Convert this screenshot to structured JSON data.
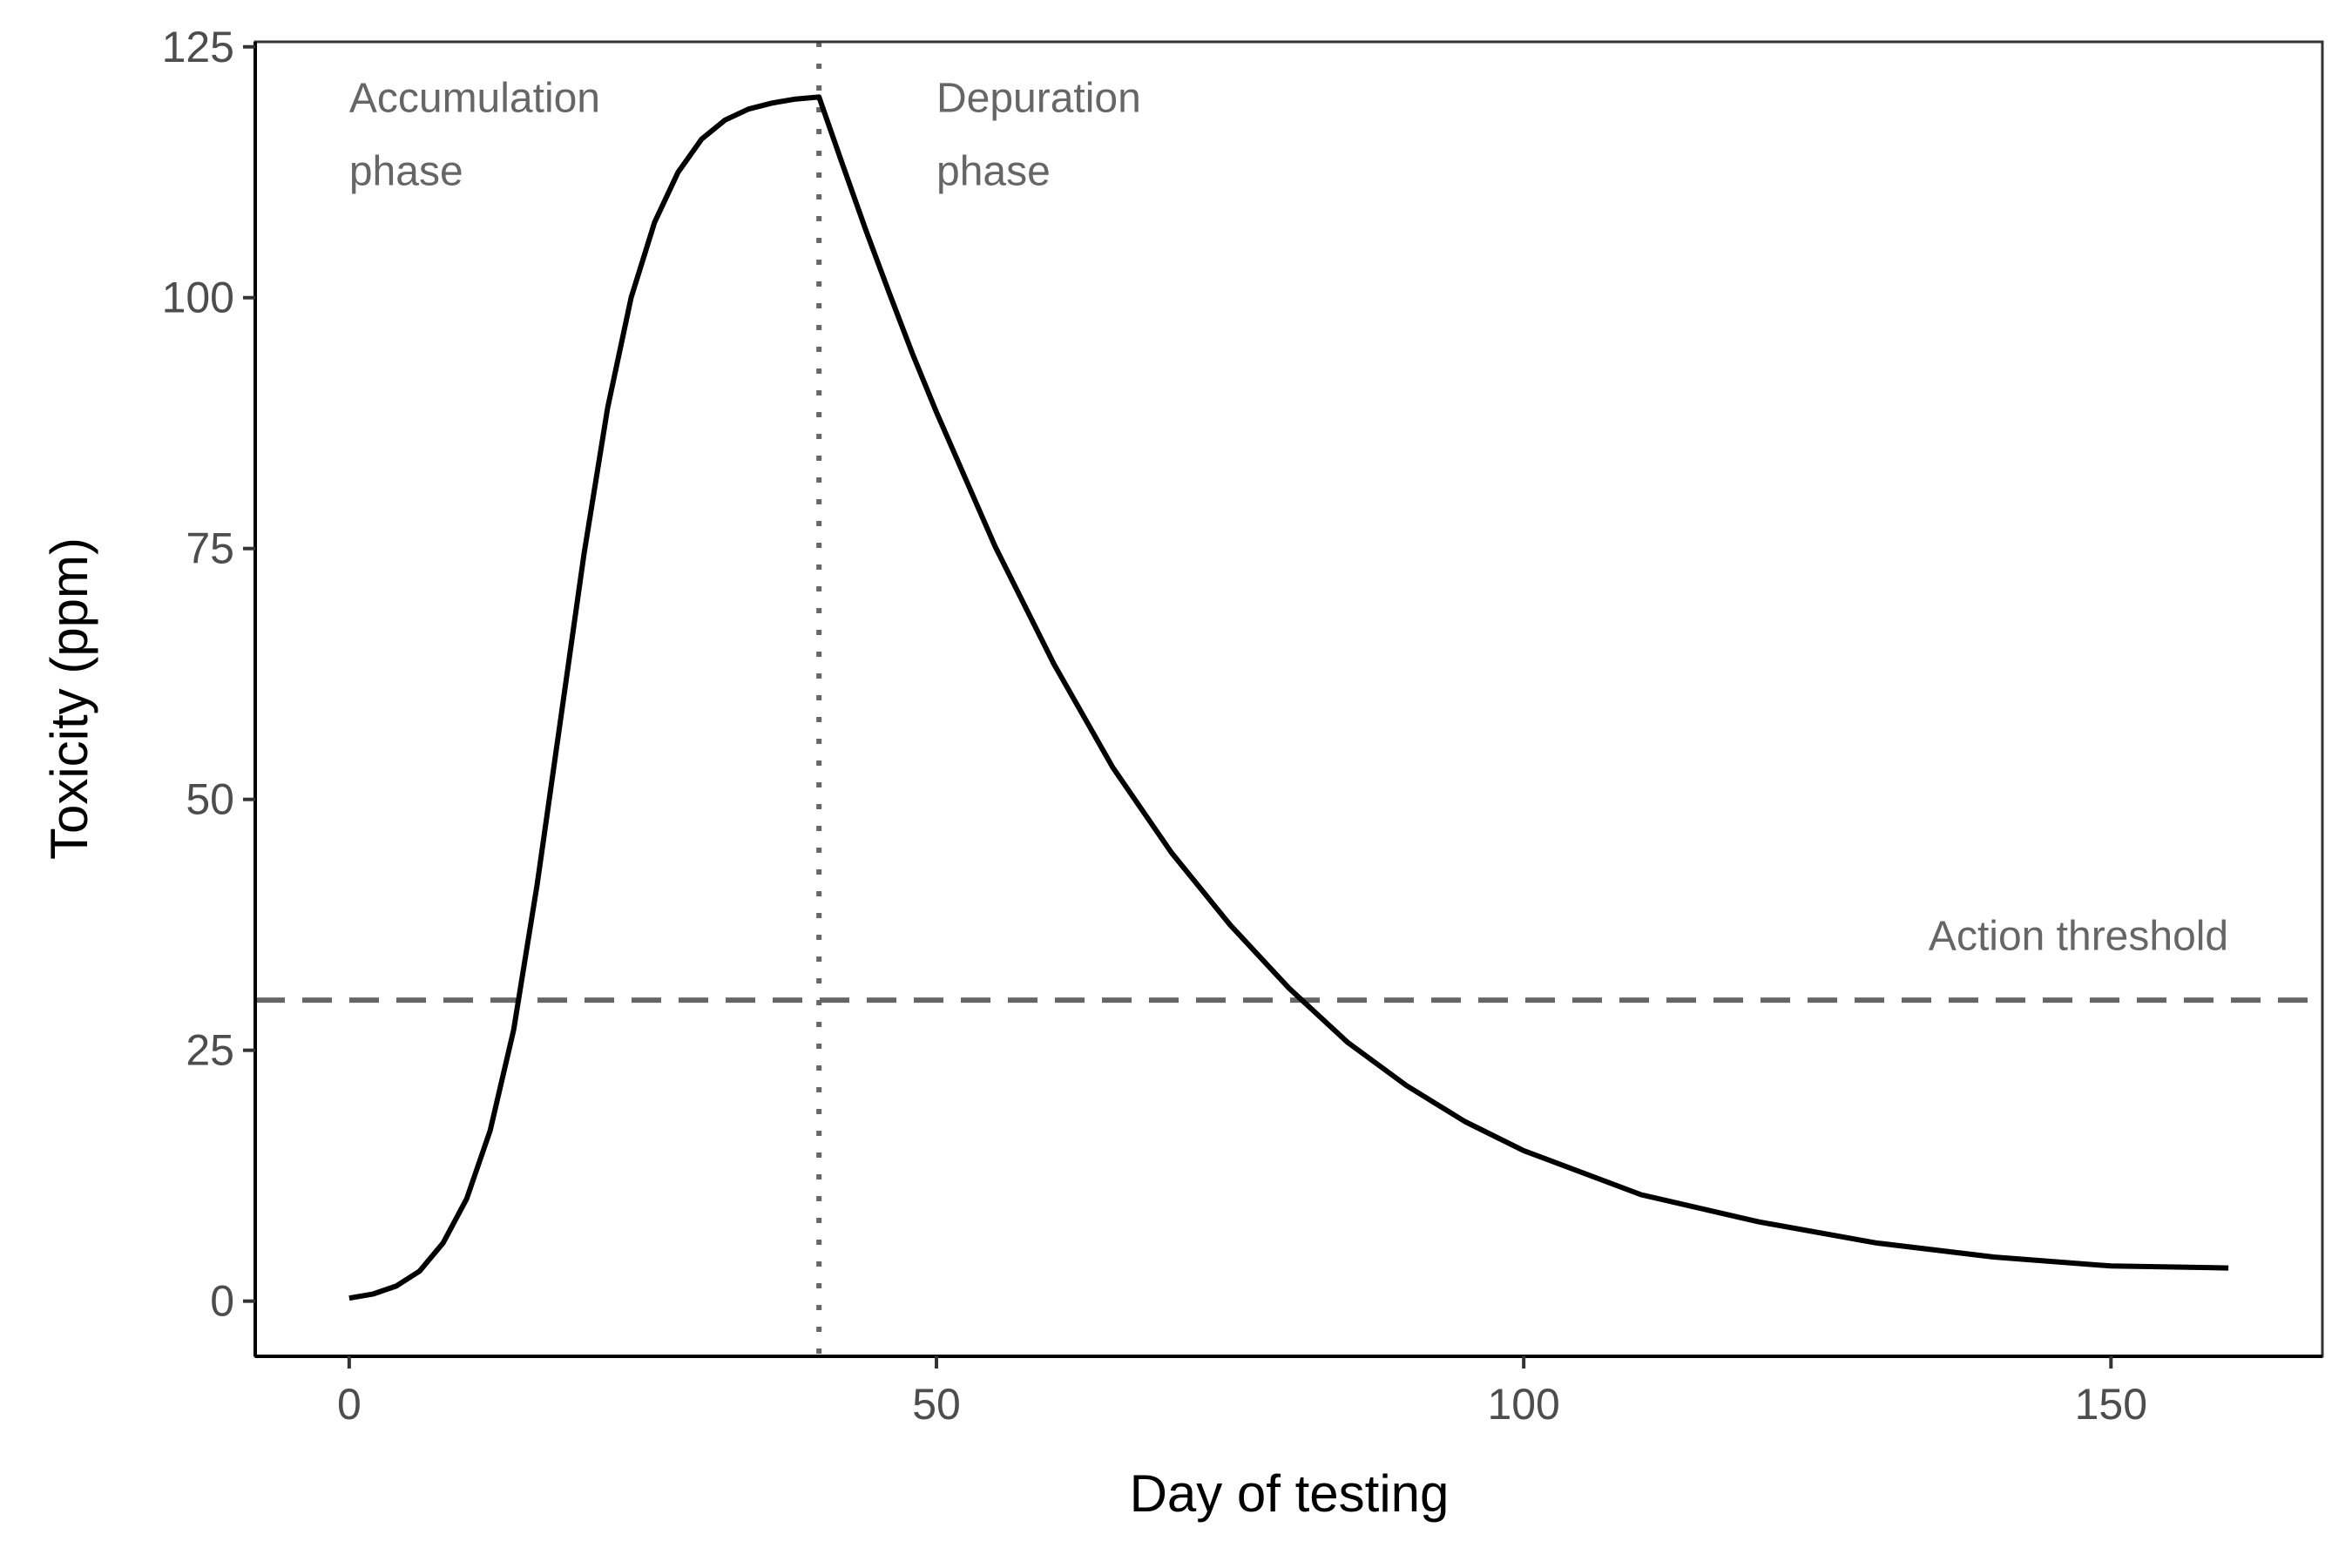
{
  "chart_data": {
    "type": "line",
    "title": "",
    "xlabel": "Day of testing",
    "ylabel": "Toxicity (ppm)",
    "xlim": [
      -8,
      168
    ],
    "ylim": [
      -5.5,
      125.5
    ],
    "x_ticks": [
      0,
      50,
      100,
      150
    ],
    "y_ticks": [
      0,
      25,
      50,
      75,
      100,
      125
    ],
    "grid": false,
    "legend": "none",
    "series": [
      {
        "color": "#000000",
        "x": [
          0,
          2,
          4,
          6,
          8,
          10,
          12,
          14,
          16,
          18,
          20,
          22,
          24,
          26,
          28,
          30,
          32,
          34,
          36,
          38,
          40,
          42,
          44,
          46,
          48,
          50,
          55,
          60,
          65,
          70,
          75,
          80,
          85,
          90,
          95,
          100,
          110,
          120,
          130,
          140,
          150,
          160
        ],
        "y": [
          0.3,
          0.7,
          1.5,
          3.0,
          5.8,
          10.2,
          17.0,
          27.0,
          41.5,
          58.0,
          74.5,
          89.0,
          100.0,
          107.5,
          112.5,
          115.8,
          117.7,
          118.8,
          119.4,
          119.8,
          120.0,
          113.3,
          106.7,
          100.4,
          94.3,
          88.6,
          75.2,
          63.5,
          53.2,
          44.7,
          37.5,
          31.2,
          25.8,
          21.5,
          17.9,
          15.0,
          10.6,
          7.9,
          5.8,
          4.4,
          3.5,
          3.3
        ]
      }
    ],
    "vlines": [
      {
        "x": 40,
        "style": "dotted",
        "color": "#666666"
      }
    ],
    "hlines": [
      {
        "y": 30,
        "style": "dashed",
        "color": "#666666"
      }
    ],
    "annotations": [
      {
        "x": 0,
        "y": 118.5,
        "lines": [
          "Accumulation",
          "phase"
        ]
      },
      {
        "x": 50,
        "y": 118.5,
        "lines": [
          "Depuration",
          "phase"
        ]
      },
      {
        "x": 160,
        "y": 35,
        "lines": [
          "Action threshold"
        ]
      }
    ]
  }
}
